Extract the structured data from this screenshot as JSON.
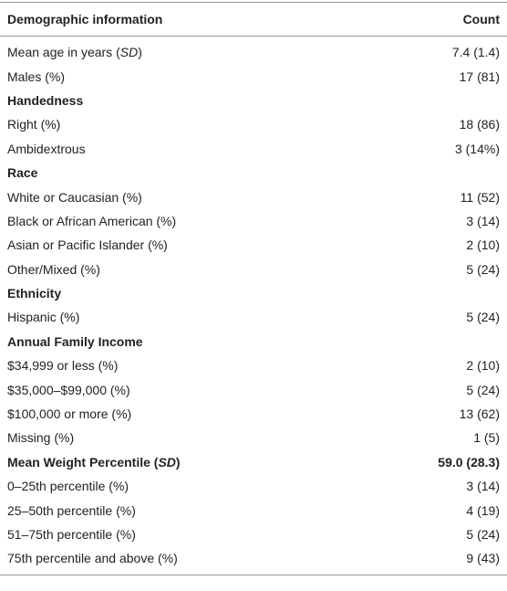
{
  "table": {
    "header": [
      "Demographic information",
      "Count"
    ],
    "rows": [
      {
        "label": [
          "Mean age in years (",
          "SD",
          ")"
        ],
        "count": "7.4 (1.4)"
      },
      {
        "label": "Males (%)",
        "count": "17 (81)"
      },
      {
        "label": "Handedness",
        "heading": true
      },
      {
        "label": "Right (%)",
        "count": "18 (86)"
      },
      {
        "label": "Ambidextrous",
        "count": "3 (14%)"
      },
      {
        "label": "Race",
        "heading": true
      },
      {
        "label": "White or Caucasian (%)",
        "count": "11 (52)"
      },
      {
        "label": "Black or African American (%)",
        "count": "3 (14)"
      },
      {
        "label": "Asian or Pacific Islander (%)",
        "count": "2 (10)"
      },
      {
        "label": "Other/Mixed (%)",
        "count": "5 (24)"
      },
      {
        "label": "Ethnicity",
        "heading": true
      },
      {
        "label": "Hispanic (%)",
        "count": "5 (24)"
      },
      {
        "label": "Annual Family Income",
        "heading": true
      },
      {
        "label": "$34,999 or less (%)",
        "count": "2 (10)"
      },
      {
        "label": "$35,000–$99,000 (%)",
        "count": "5 (24)"
      },
      {
        "label": "$100,000 or more (%)",
        "count": "13 (62)"
      },
      {
        "label": "Missing (%)",
        "count": "1 (5)"
      },
      {
        "label": [
          "Mean Weight Percentile (",
          "SD",
          ")"
        ],
        "count": "59.0 (28.3)",
        "heading": true
      },
      {
        "label": "0–25th percentile (%)",
        "count": "3 (14)"
      },
      {
        "label": "25–50th percentile (%)",
        "count": "4 (19)"
      },
      {
        "label": "51–75th percentile (%)",
        "count": "5 (24)"
      },
      {
        "label": "75th percentile and above (%)",
        "count": "9 (43)"
      }
    ]
  }
}
